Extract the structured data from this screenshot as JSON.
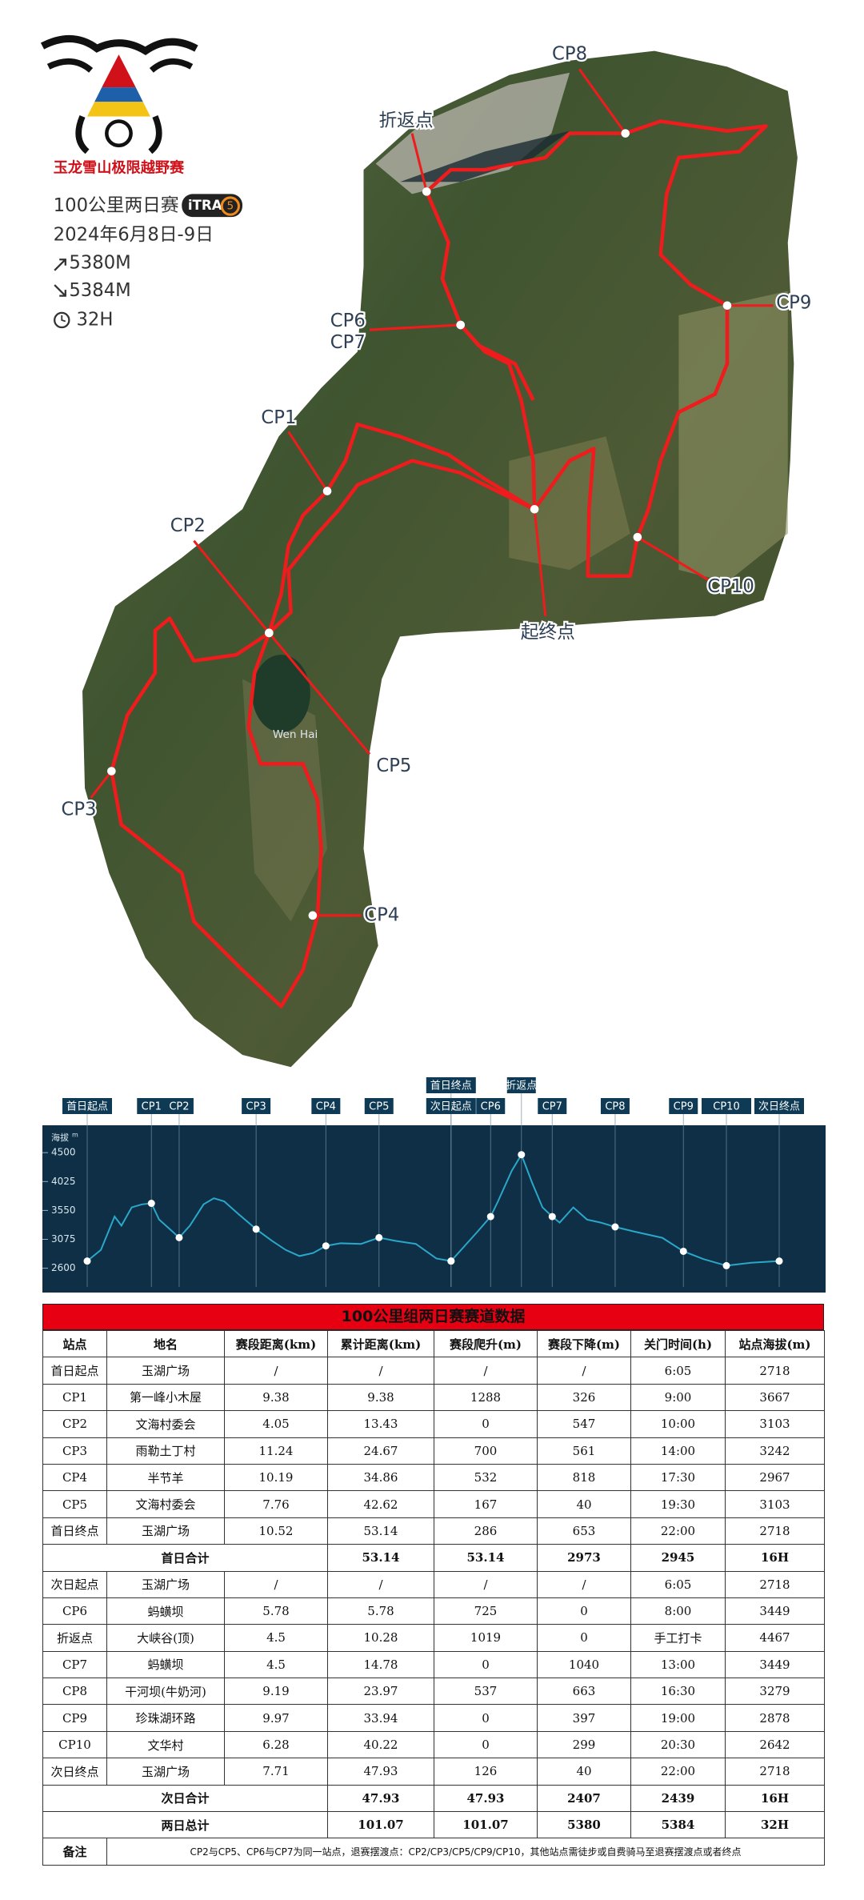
{
  "header": {
    "logo_text": "玉龙雪山极限越野赛",
    "race": "100公里两日赛",
    "itra": "iTRA",
    "itra_points": "5",
    "date": "2024年6月8日-9日",
    "ascent": "5380M",
    "descent": "5384M",
    "duration": "32H"
  },
  "map": {
    "labels": [
      "CP8",
      "折返点",
      "CP6",
      "CP7",
      "CP9",
      "CP1",
      "CP2",
      "CP10",
      "起终点",
      "CP5",
      "CP3",
      "CP4"
    ],
    "lake": "Wen Hai"
  },
  "chart_data": {
    "type": "line",
    "y_label": "海拔",
    "y_unit": "m",
    "color": "#2aa7c9",
    "xlim": [
      0,
      101.07
    ],
    "ylim": [
      2200,
      4950
    ],
    "yticks": [
      2600,
      3075,
      3550,
      4025,
      4500
    ],
    "x": [
      0,
      2,
      4,
      5,
      6.5,
      8,
      9.38,
      10.5,
      12,
      13.43,
      15,
      17,
      18.5,
      20,
      22,
      24.67,
      27,
      29,
      31,
      33,
      34.86,
      37,
      40,
      42.62,
      45,
      48,
      51,
      53.14,
      55,
      57,
      58.92,
      60,
      62,
      63.42,
      65,
      66.5,
      67.92,
      69,
      71,
      73,
      75,
      77.11,
      80,
      84,
      87.08,
      90,
      93.36,
      97,
      101.07
    ],
    "values": [
      2718,
      2900,
      3450,
      3300,
      3600,
      3650,
      3667,
      3400,
      3250,
      3103,
      3300,
      3650,
      3750,
      3700,
      3500,
      3242,
      3050,
      2900,
      2800,
      2850,
      2967,
      3010,
      3000,
      3103,
      3050,
      3000,
      2760,
      2718,
      2950,
      3200,
      3449,
      3700,
      4200,
      4467,
      4000,
      3600,
      3449,
      3350,
      3600,
      3400,
      3350,
      3279,
      3200,
      3100,
      2878,
      2750,
      2642,
      2690,
      2718
    ],
    "checkpoints": {
      "labels": [
        "首日起点",
        "CP1",
        "CP2",
        "CP3",
        "CP4",
        "CP5",
        "首日终点",
        "次日起点",
        "CP6",
        "折返点",
        "CP7",
        "CP8",
        "CP9",
        "CP10",
        "次日终点"
      ],
      "x": [
        0,
        9.38,
        13.43,
        24.67,
        34.86,
        42.62,
        53.14,
        53.14,
        58.92,
        63.42,
        67.92,
        77.11,
        87.08,
        93.36,
        101.07
      ],
      "values": [
        2718,
        3667,
        3103,
        3242,
        2967,
        3103,
        2718,
        2718,
        3449,
        4467,
        3449,
        3279,
        2878,
        2642,
        2718
      ]
    }
  },
  "table": {
    "title": "100公里组两日赛赛道数据",
    "header": [
      "站点",
      "地名",
      "赛段距离(km)",
      "累计距离(km)",
      "赛段爬升(m)",
      "赛段下降(m)",
      "关门时间(h)",
      "站点海拔(m)"
    ],
    "rows": [
      [
        "首日起点",
        "玉湖广场",
        "/",
        "/",
        "/",
        "/",
        "6:05",
        "2718"
      ],
      [
        "CP1",
        "第一峰小木屋",
        "9.38",
        "9.38",
        "1288",
        "326",
        "9:00",
        "3667"
      ],
      [
        "CP2",
        "文海村委会",
        "4.05",
        "13.43",
        "0",
        "547",
        "10:00",
        "3103"
      ],
      [
        "CP3",
        "雨勒土丁村",
        "11.24",
        "24.67",
        "700",
        "561",
        "14:00",
        "3242"
      ],
      [
        "CP4",
        "半节羊",
        "10.19",
        "34.86",
        "532",
        "818",
        "17:30",
        "2967"
      ],
      [
        "CP5",
        "文海村委会",
        "7.76",
        "42.62",
        "167",
        "40",
        "19:30",
        "3103"
      ],
      [
        "首日终点",
        "玉湖广场",
        "10.52",
        "53.14",
        "286",
        "653",
        "22:00",
        "2718"
      ],
      [
        "首日合计",
        "53.14",
        "53.14",
        "2973",
        "2945",
        "16H"
      ],
      [
        "次日起点",
        "玉湖广场",
        "/",
        "/",
        "/",
        "/",
        "6:05",
        "2718"
      ],
      [
        "CP6",
        "蚂蟥坝",
        "5.78",
        "5.78",
        "725",
        "0",
        "8:00",
        "3449"
      ],
      [
        "折返点",
        "大峡谷(顶)",
        "4.5",
        "10.28",
        "1019",
        "0",
        "手工打卡",
        "4467"
      ],
      [
        "CP7",
        "蚂蟥坝",
        "4.5",
        "14.78",
        "0",
        "1040",
        "13:00",
        "3449"
      ],
      [
        "CP8",
        "干河坝(牛奶河)",
        "9.19",
        "23.97",
        "537",
        "663",
        "16:30",
        "3279"
      ],
      [
        "CP9",
        "珍珠湖环路",
        "9.97",
        "33.94",
        "0",
        "397",
        "19:00",
        "2878"
      ],
      [
        "CP10",
        "文华村",
        "6.28",
        "40.22",
        "0",
        "299",
        "20:30",
        "2642"
      ],
      [
        "次日终点",
        "玉湖广场",
        "7.71",
        "47.93",
        "126",
        "40",
        "22:00",
        "2718"
      ],
      [
        "次日合计",
        "47.93",
        "47.93",
        "2407",
        "2439",
        "16H"
      ],
      [
        "两日总计",
        "101.07",
        "101.07",
        "5380",
        "5384",
        "32H"
      ]
    ],
    "note": {
      "label": "备注",
      "text": "CP2与CP5、CP6与CP7为同一站点，退赛摆渡点：CP2/CP3/CP5/CP9/CP10，其他站点需徒步或自费骑马至退赛摆渡点或者终点"
    }
  }
}
